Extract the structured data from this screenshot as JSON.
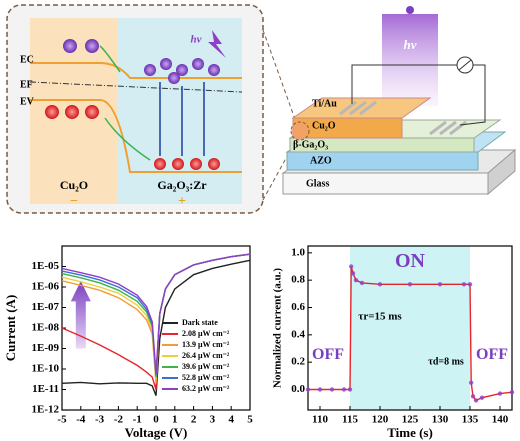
{
  "band_diagram": {
    "levels": [
      "EC",
      "EF",
      "EV"
    ],
    "light": "hν",
    "left_material": "Cu₂O",
    "right_material": "Ga₂O₃:Zr",
    "left_sign": "−",
    "right_sign": "+"
  },
  "device": {
    "light": "hν",
    "layers": [
      "Ti/Au",
      "Cu₂O",
      "β-Ga₂O₃",
      "AZO",
      "Glass"
    ]
  },
  "chart_data": [
    {
      "type": "line",
      "log_y": true,
      "xlabel": "Voltage (V)",
      "ylabel": "Current (A)",
      "xlim": [
        -5,
        5
      ],
      "xticks": [
        -5,
        -4,
        -3,
        -2,
        -1,
        0,
        1,
        2,
        3,
        4,
        5
      ],
      "ylim": [
        1e-12,
        0.0001
      ],
      "yticks": [
        {
          "value": 1e-12,
          "label": "1E-12"
        },
        {
          "value": 1e-11,
          "label": "1E-11"
        },
        {
          "value": 1e-10,
          "label": "1E-10"
        },
        {
          "value": 1e-09,
          "label": "1E-09"
        },
        {
          "value": 1e-08,
          "label": "1E-08"
        },
        {
          "value": 1e-07,
          "label": "1E-07"
        },
        {
          "value": 1e-06,
          "label": "1E-06"
        },
        {
          "value": 1e-05,
          "label": "1E-05"
        }
      ],
      "legend": "lower right",
      "x": [
        -5,
        -4,
        -3,
        -2,
        -1,
        -0.5,
        -0.2,
        0,
        0.2,
        0.5,
        1,
        2,
        3,
        4,
        5
      ],
      "series": [
        {
          "name": "Dark state",
          "color": "#222222",
          "values": [
            2e-11,
            2.2e-11,
            1.9e-11,
            2.1e-11,
            2e-11,
            2e-11,
            1.5e-11,
            5e-12,
            3e-09,
            1e-07,
            8e-07,
            4e-06,
            8e-06,
            1.3e-05,
            2e-05
          ]
        },
        {
          "name": "2.08 μW cm⁻²",
          "color": "#e8252b",
          "values": [
            1e-08,
            4e-09,
            1.5e-09,
            5e-10,
            1.5e-10,
            7e-11,
            4e-11,
            1e-11,
            5e-08,
            8e-07,
            4e-06,
            1.2e-05,
            2e-05,
            3e-05,
            4e-05
          ]
        },
        {
          "name": "13.9 μW cm⁻²",
          "color": "#f39a3a",
          "values": [
            2e-06,
            1.2e-06,
            7e-07,
            3e-07,
            8e-08,
            2.5e-08,
            5e-09,
            2e-11,
            5e-08,
            8e-07,
            4e-06,
            1.2e-05,
            2e-05,
            3e-05,
            4e-05
          ]
        },
        {
          "name": "26.4 μW cm⁻²",
          "color": "#e8d23a",
          "values": [
            3e-06,
            1.8e-06,
            1e-06,
            5e-07,
            1.3e-07,
            4e-08,
            8e-09,
            3e-11,
            5e-08,
            8e-07,
            4e-06,
            1.2e-05,
            2e-05,
            3e-05,
            4e-05
          ]
        },
        {
          "name": "39.6 μW cm⁻²",
          "color": "#3cb44b",
          "values": [
            4.5e-06,
            2.8e-06,
            1.6e-06,
            7e-07,
            2e-07,
            6e-08,
            1.2e-08,
            4e-11,
            5e-08,
            8e-07,
            4e-06,
            1.2e-05,
            2e-05,
            3e-05,
            4e-05
          ]
        },
        {
          "name": "52.8 μW cm⁻²",
          "color": "#3a6fd8",
          "values": [
            6e-06,
            3.8e-06,
            2.2e-06,
            1e-06,
            3e-07,
            8e-08,
            1.6e-08,
            5e-11,
            5e-08,
            8e-07,
            4e-06,
            1.2e-05,
            2e-05,
            3e-05,
            4e-05
          ]
        },
        {
          "name": "63.2 μW cm⁻²",
          "color": "#8e3fc8",
          "values": [
            8e-06,
            5e-06,
            3e-06,
            1.4e-06,
            4e-07,
            1.1e-07,
            2e-08,
            6e-11,
            5e-08,
            8e-07,
            4e-06,
            1.2e-05,
            2e-05,
            3e-05,
            4e-05
          ]
        }
      ]
    },
    {
      "type": "line",
      "xlabel": "Time (s)",
      "ylabel": "Normalized current (a.u.)",
      "xlim": [
        108,
        142
      ],
      "xticks": [
        110,
        115,
        120,
        125,
        130,
        135,
        140
      ],
      "ylim": [
        -0.15,
        1.05
      ],
      "yticks": [
        {
          "value": 0,
          "label": "0.0"
        },
        0.2,
        0.4,
        0.6,
        0.8,
        {
          "value": 1,
          "label": "1.0"
        }
      ],
      "on_region": [
        115,
        135
      ],
      "on_color": "#cdf3f5",
      "annotations": [
        "ON",
        "OFF",
        "OFF",
        "τr=15 ms",
        "τd=8 ms"
      ],
      "x": [
        108,
        110,
        112,
        114,
        115,
        115.2,
        115.5,
        116,
        117,
        120,
        125,
        130,
        134,
        135,
        135.2,
        135.5,
        136,
        137,
        140,
        142
      ],
      "series": [
        {
          "color": "#e8252b",
          "marker_color": "#8e3fc8",
          "values": [
            0,
            0,
            0,
            0,
            0,
            0.9,
            0.85,
            0.8,
            0.78,
            0.77,
            0.77,
            0.77,
            0.77,
            0.77,
            0.05,
            -0.05,
            -0.08,
            -0.06,
            -0.03,
            -0.02
          ]
        }
      ]
    }
  ]
}
